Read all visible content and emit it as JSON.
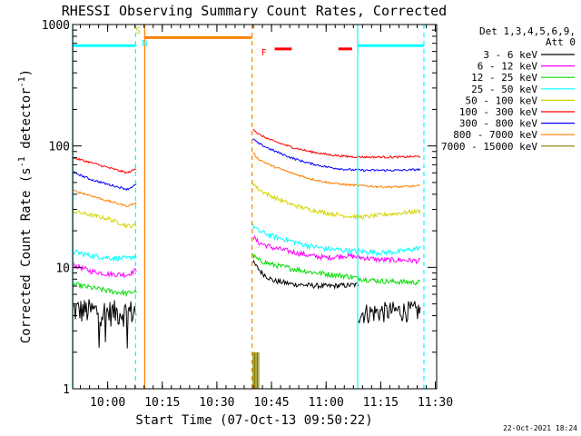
{
  "chart_data": {
    "type": "line",
    "title": "RHESSI Observing Summary Count Rates, Corrected",
    "xlabel": "Start Time (07-Oct-13 09:50:22)",
    "ylabel_pre": "Corrected Count Rate (s",
    "ylabel_sup1": "-1",
    "ylabel_mid": " detector",
    "ylabel_sup2": "-1",
    "ylabel_post": ")",
    "yscale": "log",
    "ylim": [
      1,
      1000
    ],
    "xlim_minutes": [
      0,
      100
    ],
    "x_ticks": [
      {
        "m": 9.633,
        "label": "10:00"
      },
      {
        "m": 24.633,
        "label": "10:15"
      },
      {
        "m": 39.633,
        "label": "10:30"
      },
      {
        "m": 54.633,
        "label": "10:45"
      },
      {
        "m": 69.633,
        "label": "11:00"
      },
      {
        "m": 84.633,
        "label": "11:15"
      },
      {
        "m": 99.633,
        "label": "11:30"
      }
    ],
    "y_ticks": [
      {
        "v": 1,
        "label": "1"
      },
      {
        "v": 10,
        "label": "10"
      },
      {
        "v": 100,
        "label": "100"
      },
      {
        "v": 1000,
        "label": "1000"
      }
    ],
    "legend_header": [
      "Det 1,3,4,5,6,9,",
      "Att 0"
    ],
    "legend_position": "right",
    "series": [
      {
        "name": "3 - 6 keV",
        "color": "#000000",
        "segments": [
          {
            "x": [
              0,
              5,
              10,
              15,
              17.5
            ],
            "y": [
              4.5,
              4.4,
              4.3,
              4.3,
              4.4
            ],
            "noise": 0.25,
            "drops": true
          },
          {
            "x": [
              49.5,
              52,
              55,
              60,
              65,
              70,
              75,
              78.5
            ],
            "y": [
              11,
              9,
              7.8,
              7.3,
              7.1,
              7.0,
              7.1,
              7.2
            ],
            "noise": 0.05
          },
          {
            "x": [
              78.5,
              84,
              90,
              95.5
            ],
            "y": [
              4.2,
              4.3,
              4.4,
              4.4
            ],
            "noise": 0.2
          }
        ]
      },
      {
        "name": "6 - 12 keV",
        "color": "#ff00ff",
        "segments": [
          {
            "x": [
              0,
              5,
              10,
              15,
              17.5
            ],
            "y": [
              10.5,
              9.3,
              8.8,
              8.7,
              9.5
            ],
            "noise": 0.05
          },
          {
            "x": [
              49.5,
              51,
              55,
              60,
              65,
              70,
              75,
              80,
              85,
              90,
              95.5
            ],
            "y": [
              18,
              16,
              14.5,
              13.5,
              12.5,
              12,
              12.5,
              12,
              11.5,
              11.5,
              11.3
            ],
            "noise": 0.05
          }
        ]
      },
      {
        "name": "12 - 25 keV",
        "color": "#00dd00",
        "segments": [
          {
            "x": [
              0,
              5,
              10,
              15,
              17.5
            ],
            "y": [
              7.3,
              6.8,
              6.4,
              6.1,
              6.4
            ],
            "noise": 0.05
          },
          {
            "x": [
              49.5,
              51,
              55,
              60,
              65,
              70,
              75,
              80,
              85,
              90,
              95.5
            ],
            "y": [
              12.5,
              11.5,
              10.5,
              9.8,
              9.2,
              8.8,
              8.5,
              8.0,
              7.7,
              7.6,
              7.5
            ],
            "noise": 0.05
          }
        ]
      },
      {
        "name": "25 - 50 keV",
        "color": "#00ffff",
        "segments": [
          {
            "x": [
              0,
              5,
              10,
              15,
              17.5
            ],
            "y": [
              13.5,
              12.5,
              12,
              11.8,
              12.5
            ],
            "noise": 0.05
          },
          {
            "x": [
              49.5,
              51,
              55,
              60,
              65,
              70,
              75,
              80,
              85,
              90,
              95.5
            ],
            "y": [
              22,
              20,
              18,
              16.5,
              15,
              14.2,
              13.8,
              13.5,
              13.2,
              13.5,
              14.5
            ],
            "noise": 0.05
          }
        ]
      },
      {
        "name": "50 - 100 keV",
        "color": "#d4d400",
        "segments": [
          {
            "x": [
              0,
              5,
              10,
              15,
              17.5
            ],
            "y": [
              29,
              27,
              25,
              22,
              22
            ],
            "noise": 0.04
          },
          {
            "x": [
              49.5,
              51,
              55,
              60,
              65,
              70,
              75,
              80,
              85,
              90,
              95.5
            ],
            "y": [
              50,
              44,
              38,
              33,
              30,
              28,
              26.5,
              26,
              27,
              28,
              29
            ],
            "noise": 0.04
          }
        ]
      },
      {
        "name": "100 - 300 keV",
        "color": "#ff0000",
        "segments": [
          {
            "x": [
              0,
              5,
              10,
              15,
              17.5
            ],
            "y": [
              80,
              73,
              66,
              60,
              65
            ],
            "noise": 0.02
          },
          {
            "x": [
              49.5,
              51,
              55,
              60,
              65,
              70,
              75,
              80,
              85,
              90,
              95.5
            ],
            "y": [
              140,
              125,
              110,
              98,
              90,
              85,
              82,
              81,
              81,
              81,
              82
            ],
            "noise": 0.02
          }
        ]
      },
      {
        "name": "300 - 800 keV",
        "color": "#0000ff",
        "segments": [
          {
            "x": [
              0,
              5,
              10,
              15,
              17.5
            ],
            "y": [
              61,
              53,
              48,
              44,
              48
            ],
            "noise": 0.02
          },
          {
            "x": [
              49.5,
              51,
              55,
              60,
              65,
              70,
              75,
              80,
              85,
              90,
              95.5
            ],
            "y": [
              115,
              105,
              92,
              80,
              72,
              67,
              64,
              63,
              63,
              63,
              64
            ],
            "noise": 0.02
          }
        ]
      },
      {
        "name": "800 - 7000 keV",
        "color": "#ff8000",
        "segments": [
          {
            "x": [
              0,
              5,
              10,
              15,
              17.5
            ],
            "y": [
              43,
              39,
              35,
              32,
              34
            ],
            "noise": 0.02
          },
          {
            "x": [
              49.5,
              51,
              55,
              60,
              65,
              70,
              75,
              80,
              85,
              90,
              95.5
            ],
            "y": [
              88,
              78,
              68,
              60,
              54,
              50,
              48,
              47,
              46,
              46,
              47
            ],
            "noise": 0.02
          }
        ]
      },
      {
        "name": "7000 - 15000 keV",
        "color": "#808000",
        "bars": [
          {
            "x1": 49.6,
            "x2": 51.4,
            "y": 2.0
          }
        ]
      }
    ],
    "intervals": [
      {
        "type": "cyan-line",
        "x1": 0,
        "x2": 17.3,
        "y": 670,
        "color": "#00ffff"
      },
      {
        "type": "cyan-line",
        "x1": 78.3,
        "x2": 96.5,
        "y": 670,
        "color": "#00ffff"
      },
      {
        "type": "orange-line",
        "x1": 19.8,
        "x2": 49.3,
        "y": 780,
        "color": "#ff8000"
      },
      {
        "type": "red-dash",
        "x1": 55.5,
        "x2": 60.2,
        "y": 630,
        "color": "#ff0000"
      },
      {
        "type": "red-dash",
        "x1": 73.0,
        "x2": 76.8,
        "y": 630,
        "color": "#ff0000"
      }
    ],
    "vlines": [
      {
        "x": 0.1,
        "color": "#00ffff",
        "dash": false
      },
      {
        "x": 17.3,
        "color": "#00ffff",
        "dash": true
      },
      {
        "x": 19.8,
        "color": "#ff8000",
        "dash": false
      },
      {
        "x": 49.3,
        "color": "#ff8000",
        "dash": true
      },
      {
        "x": 78.3,
        "color": "#00ffff",
        "dash": false
      },
      {
        "x": 96.5,
        "color": "#00ffff",
        "dash": true
      }
    ],
    "annotations": [
      {
        "text": "S",
        "x": 17.2,
        "y": 840,
        "color": "#d4d400"
      },
      {
        "text": "N",
        "x": 19.0,
        "y": 660,
        "color": "#00ffff"
      },
      {
        "text": "F",
        "x": 51.8,
        "y": 555,
        "color": "#ff0000"
      }
    ],
    "timestamp": "22-Oct-2021 18:24"
  }
}
